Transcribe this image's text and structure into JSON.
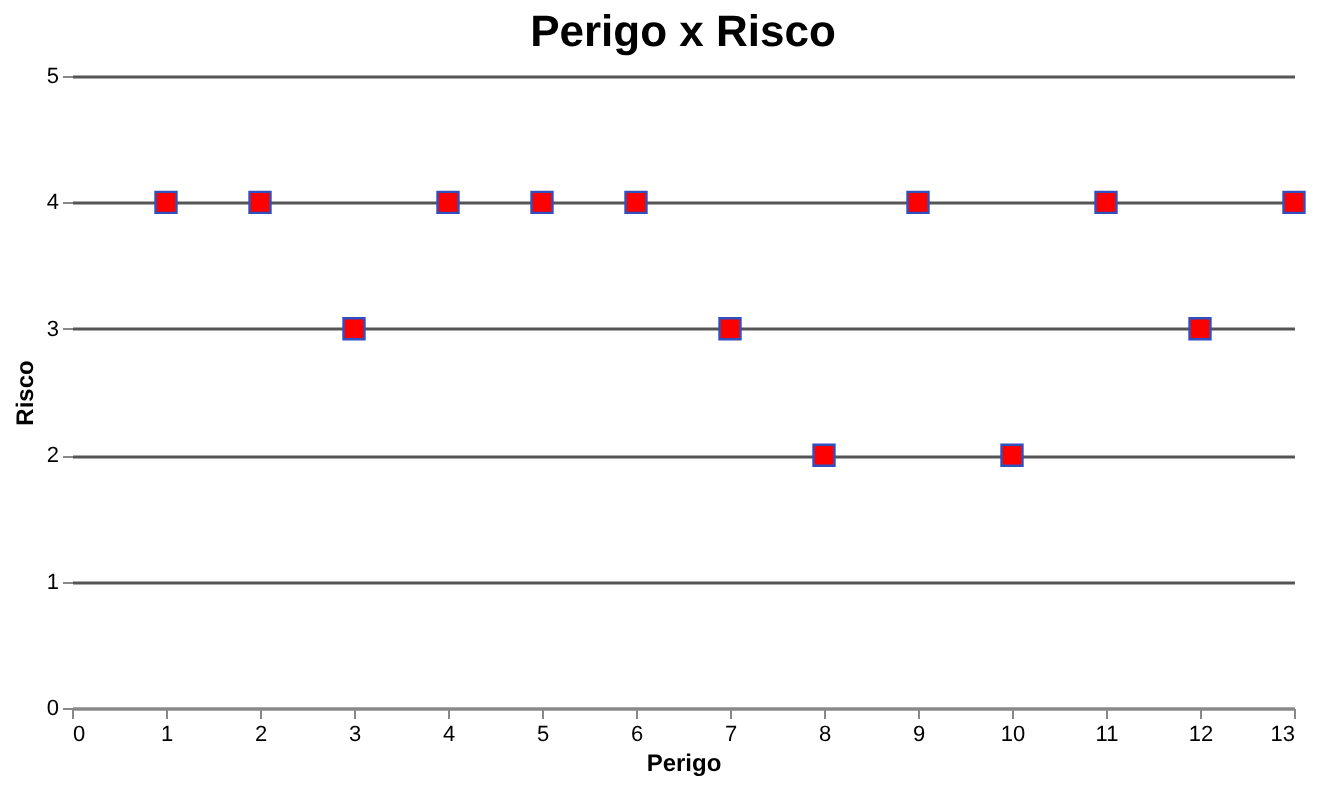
{
  "chart_data": {
    "type": "scatter",
    "title": "Perigo x Risco",
    "xlabel": "Perigo",
    "ylabel": "Risco",
    "x": [
      1,
      2,
      3,
      4,
      5,
      6,
      7,
      8,
      9,
      10,
      11,
      12,
      13
    ],
    "series": [
      {
        "color": "#ff0000",
        "values": [
          4,
          4,
          3,
          4,
          4,
          4,
          3,
          2,
          4,
          2,
          4,
          3,
          4
        ]
      }
    ],
    "xlim": [
      0,
      13
    ],
    "xticks": [
      0,
      1,
      2,
      3,
      4,
      5,
      6,
      7,
      8,
      9,
      10,
      11,
      12,
      13
    ],
    "ylim": [
      0,
      5
    ],
    "yticks": [
      0,
      1,
      2,
      3,
      4,
      5
    ],
    "grid": "y",
    "marker": "square"
  }
}
